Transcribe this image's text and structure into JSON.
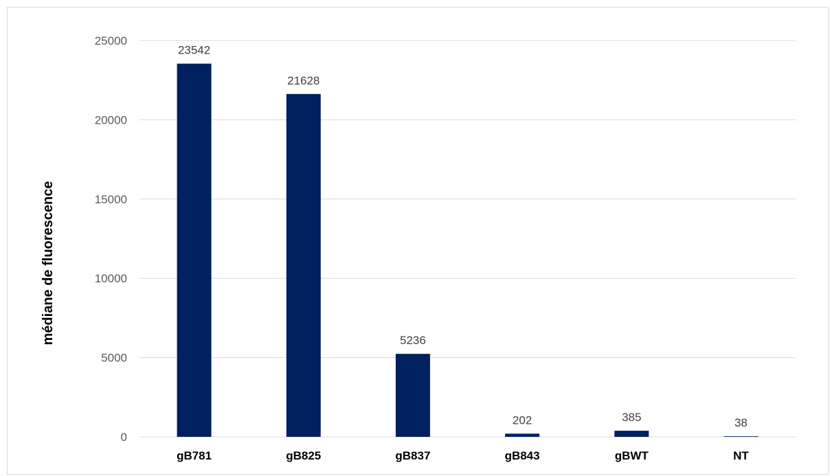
{
  "chart_data": {
    "type": "bar",
    "title": "",
    "xlabel": "",
    "ylabel": "médiane de fluorescence",
    "categories": [
      "gB781",
      "gB825",
      "gB837",
      "gB843",
      "gBWT",
      "NT"
    ],
    "values": [
      23542,
      21628,
      5236,
      202,
      385,
      38
    ],
    "data_labels": [
      "23542",
      "21628",
      "5236",
      "202",
      "385",
      "38"
    ],
    "ylim": [
      0,
      25000
    ],
    "yticks": [
      0,
      5000,
      10000,
      15000,
      20000,
      25000
    ],
    "ytick_labels": [
      "0",
      "5000",
      "10000",
      "15000",
      "20000",
      "25000"
    ],
    "grid": true,
    "legend": "none",
    "bar_color": "#002060",
    "grid_color": "#d9d9d9"
  }
}
